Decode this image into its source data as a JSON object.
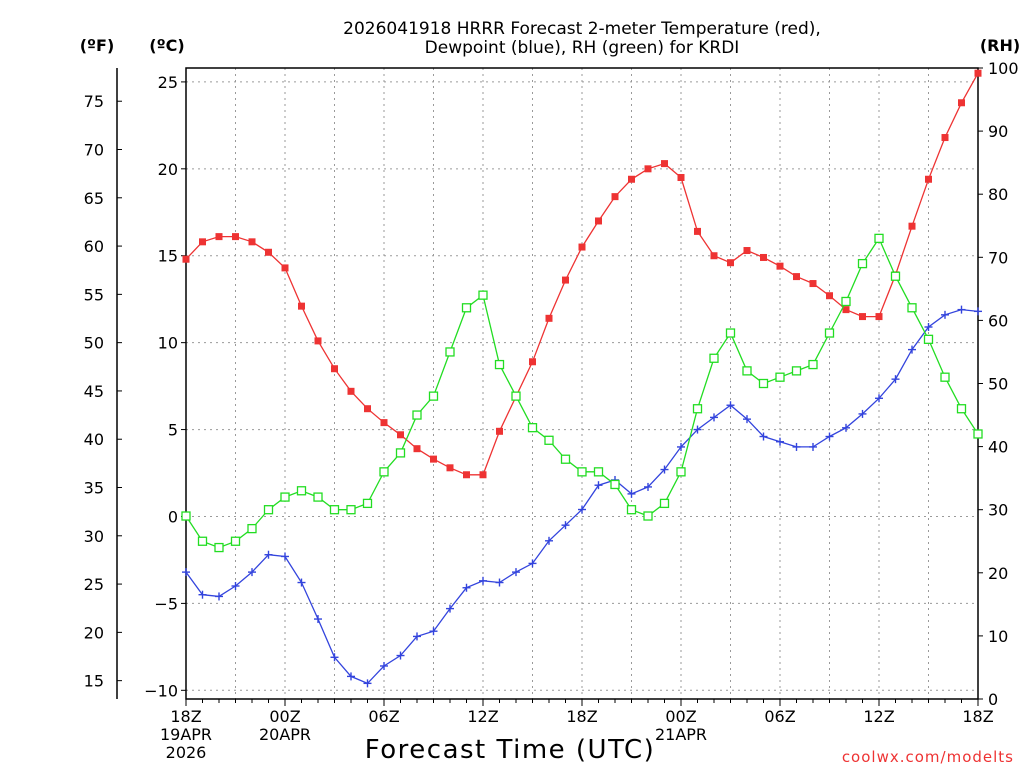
{
  "chart_data": {
    "type": "line",
    "title_line1": "2026041918 HRRR Forecast 2-meter Temperature (red),",
    "title_line2": "Dewpoint (blue), RH (green) for KRDI",
    "xlabel": "Forecast Time (UTC)",
    "credit": "coolwx.com/modelts",
    "unit_left_outer": "(ºF)",
    "unit_left_inner": "(ºC)",
    "unit_right": "(RH)",
    "ylim_c": [
      -10.5,
      25.8
    ],
    "ylim_rh": [
      0,
      100
    ],
    "hours": [
      0,
      1,
      2,
      3,
      4,
      5,
      6,
      7,
      8,
      9,
      10,
      11,
      12,
      13,
      14,
      15,
      16,
      17,
      18,
      19,
      20,
      21,
      22,
      23,
      24,
      25,
      26,
      27,
      28,
      29,
      30,
      31,
      32,
      33,
      34,
      35,
      36,
      37,
      38,
      39,
      40,
      41,
      42,
      43,
      44,
      45,
      46,
      47,
      48
    ],
    "x_ticks": [
      {
        "hour": 0,
        "lines": [
          "18Z",
          "19APR",
          "2026"
        ]
      },
      {
        "hour": 6,
        "lines": [
          "00Z",
          "20APR"
        ]
      },
      {
        "hour": 12,
        "lines": [
          "06Z"
        ]
      },
      {
        "hour": 18,
        "lines": [
          "12Z"
        ]
      },
      {
        "hour": 24,
        "lines": [
          "18Z"
        ]
      },
      {
        "hour": 30,
        "lines": [
          "00Z",
          "21APR"
        ]
      },
      {
        "hour": 36,
        "lines": [
          "06Z"
        ]
      },
      {
        "hour": 42,
        "lines": [
          "12Z"
        ]
      },
      {
        "hour": 48,
        "lines": [
          "18Z"
        ]
      }
    ],
    "celsius_ticks": [
      -10,
      -5,
      0,
      5,
      10,
      15,
      20,
      25
    ],
    "fahrenheit_ticks": [
      15,
      20,
      25,
      30,
      35,
      40,
      45,
      50,
      55,
      60,
      65,
      70,
      75
    ],
    "rh_ticks": [
      0,
      10,
      20,
      30,
      40,
      50,
      60,
      70,
      80,
      90,
      100
    ],
    "series": [
      {
        "name": "Temperature",
        "color": "#ee3333",
        "marker": "filled-square",
        "values": [
          14.8,
          15.8,
          16.1,
          16.1,
          15.8,
          15.2,
          14.3,
          12.1,
          10.1,
          8.5,
          7.2,
          6.2,
          5.4,
          4.7,
          3.9,
          3.3,
          2.8,
          2.4,
          2.4,
          4.9,
          6.9,
          8.9,
          11.4,
          13.6,
          15.5,
          17.0,
          18.4,
          19.4,
          20.0,
          20.3,
          19.5,
          16.4,
          15.0,
          14.6,
          15.3,
          14.9,
          14.4,
          13.8,
          13.4,
          12.7,
          11.9,
          11.5,
          11.5,
          13.9,
          16.7,
          19.4,
          21.8,
          23.8,
          25.5
        ]
      },
      {
        "name": "Dewpoint",
        "color": "#3344dd",
        "marker": "plus",
        "values": [
          -3.2,
          -4.5,
          -4.6,
          -4.0,
          -3.2,
          -2.2,
          -2.3,
          -3.8,
          -5.9,
          -8.1,
          -9.2,
          -9.6,
          -8.6,
          -8.0,
          -6.9,
          -6.6,
          -5.3,
          -4.1,
          -3.7,
          -3.8,
          -3.2,
          -2.7,
          -1.4,
          -0.5,
          0.4,
          1.8,
          2.1,
          1.3,
          1.7,
          2.7,
          4.0,
          5.0,
          5.7,
          6.4,
          5.6,
          4.6,
          4.3,
          4.0,
          4.0,
          4.6,
          5.1,
          5.9,
          6.8,
          7.9,
          9.6,
          10.9,
          11.6,
          11.9,
          11.8
        ]
      },
      {
        "name": "RH",
        "color": "#22dd22",
        "marker": "open-square",
        "values": [
          29,
          25,
          24,
          25,
          27,
          30,
          32,
          33,
          32,
          30,
          30,
          31,
          36,
          39,
          45,
          48,
          55,
          62,
          64,
          53,
          48,
          43,
          41,
          38,
          36,
          36,
          34,
          30,
          29,
          31,
          36,
          46,
          54,
          58,
          52,
          50,
          51,
          52,
          53,
          58,
          63,
          69,
          73,
          67,
          62,
          57,
          51,
          46,
          42
        ]
      }
    ]
  }
}
